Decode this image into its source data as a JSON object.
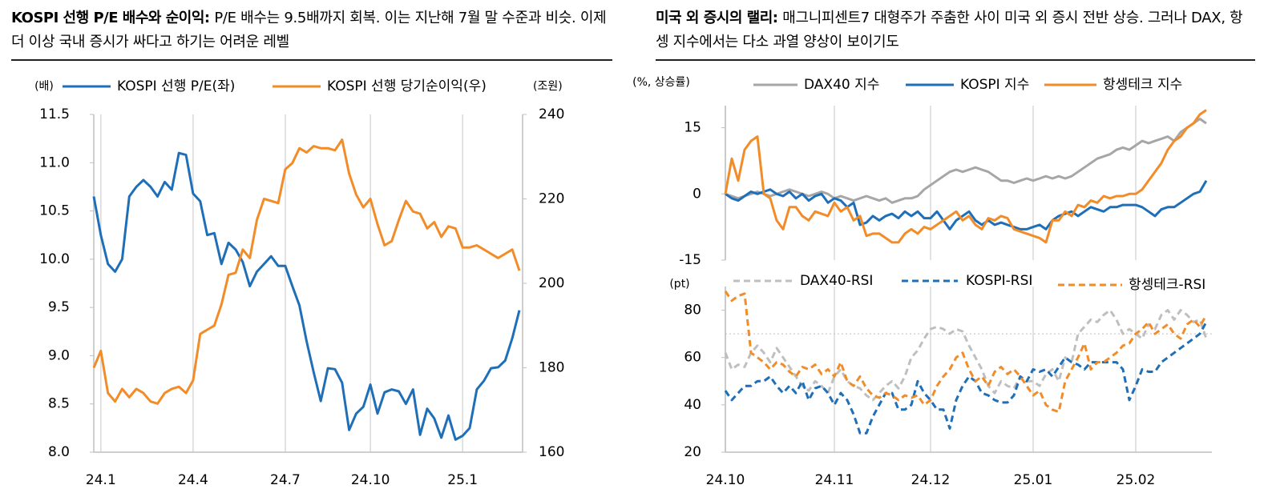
{
  "chart_data": [
    {
      "type": "line",
      "title": "KOSPI 선행 P/E 배수와 순이익:",
      "subtitle": "P/E 배수는 9.5배까지 회복. 이는 지난해 7월 말 수준과 비슷. 이제 더 이상 국내 증시가 싸다고 하기는 어려운 레벨",
      "ylabel": "(배)",
      "y2label": "(조원)",
      "categories": [
        null,
        "24.1",
        null,
        null,
        null,
        null,
        null,
        null,
        null,
        null,
        null,
        null,
        null,
        null,
        "24.4",
        null,
        null,
        null,
        null,
        null,
        null,
        null,
        null,
        null,
        null,
        null,
        null,
        "24.7",
        null,
        null,
        null,
        null,
        null,
        null,
        null,
        null,
        null,
        null,
        null,
        "24.10",
        null,
        null,
        null,
        null,
        null,
        null,
        null,
        null,
        null,
        null,
        null,
        null,
        "25.1",
        null,
        null,
        null,
        null,
        null,
        null,
        null,
        null
      ],
      "ylim": [
        8,
        11.5
      ],
      "yticks": [
        {
          "value": 8,
          "label": "8.0"
        },
        8.5,
        {
          "value": 9,
          "label": "9.0"
        },
        9.5,
        {
          "value": 10,
          "label": "10.0"
        },
        10.5,
        {
          "value": 11,
          "label": "11.0"
        },
        11.5
      ],
      "y2lim": [
        160,
        240
      ],
      "y2ticks": [
        160,
        180,
        200,
        220,
        240
      ],
      "series": [
        {
          "name": "KOSPI 선행 P/E(좌)",
          "color": "#1f6fb8",
          "values": [
            10.65,
            10.25,
            9.95,
            9.87,
            10.0,
            10.65,
            10.75,
            10.82,
            10.75,
            10.65,
            10.8,
            10.72,
            11.1,
            11.08,
            10.68,
            10.6,
            10.25,
            10.27,
            9.95,
            10.17,
            10.1,
            9.97,
            9.72,
            9.87,
            9.95,
            10.03,
            9.93,
            9.93,
            9.72,
            9.52,
            9.15,
            8.83,
            8.53,
            8.87,
            8.86,
            8.72,
            8.23,
            8.4,
            8.47,
            8.7,
            8.4,
            8.62,
            8.65,
            8.63,
            8.5,
            8.65,
            8.18,
            8.45,
            8.35,
            8.15,
            8.38,
            8.13,
            8.17,
            8.25,
            8.65,
            8.74,
            8.87,
            8.88,
            8.95,
            9.18,
            9.47
          ]
        },
        {
          "name": "KOSPI 선행 당기순이익(우)",
          "color": "#f28c28",
          "axis": "y2",
          "values": [
            180,
            184,
            174,
            172,
            175,
            173,
            175,
            174,
            172,
            171.5,
            174,
            175,
            175.5,
            174,
            177,
            188,
            189,
            190,
            195,
            202,
            202.5,
            208,
            206,
            215,
            220,
            219.5,
            219,
            227,
            228.5,
            232,
            231,
            232.5,
            232,
            232,
            231.5,
            234,
            226,
            221,
            218,
            220,
            214,
            209,
            210,
            215,
            219.5,
            217,
            216.5,
            213,
            214.5,
            211,
            213.5,
            213,
            208.5,
            208.5,
            209,
            208,
            207,
            206,
            207,
            208,
            203
          ]
        }
      ]
    },
    {
      "type": "line",
      "title": "미국 외 증시의 랠리:",
      "subtitle": "매그니피센트7 대형주가 주춤한 사이 미국 외 증시 전반 상승. 그러나 DAX, 항셍 지수에서는 다소 과열 양상이 보이기도",
      "ylabel": "(%, 상승률)",
      "ylim": [
        -15,
        20
      ],
      "yticks": [
        -15,
        0,
        15
      ],
      "series": [
        {
          "name": "DAX40 지수",
          "color": "#a6a6a6",
          "values": [
            0,
            -0.5,
            -1,
            -0.5,
            0,
            0.5,
            0,
            -0.5,
            0,
            0.5,
            1,
            0.5,
            0,
            -0.5,
            0,
            0.5,
            0,
            -1,
            -0.5,
            -1,
            -1.5,
            -1,
            -0.5,
            -1,
            -1.5,
            -1,
            -2,
            -1.5,
            -1,
            -1,
            -0.5,
            1,
            2,
            3,
            4,
            5,
            5.5,
            5,
            5.5,
            6,
            5.5,
            5,
            4,
            3,
            3,
            2.5,
            3,
            3.5,
            3,
            3.5,
            4,
            3.5,
            4,
            3.5,
            4,
            5,
            6,
            7,
            8,
            8.5,
            9,
            10,
            10.5,
            10,
            11,
            12,
            11.5,
            12,
            12.5,
            13,
            12,
            14,
            15,
            16,
            17,
            16
          ]
        },
        {
          "name": "KOSPI 지수",
          "color": "#1f6fb8",
          "values": [
            0,
            -1,
            -1.5,
            -0.5,
            0.5,
            0,
            0.5,
            1,
            0,
            -0.5,
            0.5,
            -1,
            0,
            -1.5,
            -0.5,
            0,
            -2,
            -1,
            -1.5,
            -3,
            -2,
            -7,
            -6.5,
            -5,
            -6,
            -5,
            -4.5,
            -5.5,
            -4,
            -5,
            -4,
            -5.5,
            -5.5,
            -4,
            -6,
            -8,
            -6,
            -5,
            -4,
            -6,
            -7,
            -6,
            -7,
            -6.5,
            -7,
            -7.5,
            -8,
            -8,
            -7.5,
            -7,
            -8,
            -6,
            -5,
            -4.5,
            -4,
            -5,
            -4,
            -3,
            -3.5,
            -4,
            -3,
            -3,
            -2.5,
            -2.5,
            -2.5,
            -3,
            -4,
            -5,
            -3.5,
            -3,
            -3,
            -2,
            -1,
            0,
            0.5,
            3
          ]
        },
        {
          "name": "항셍테크 지수",
          "color": "#f28c28",
          "values": [
            0,
            8,
            3,
            10,
            12,
            13,
            0,
            -1,
            -6,
            -8,
            -3,
            -3,
            -5,
            -6,
            -4,
            -4.5,
            -5,
            -2,
            -4,
            -3,
            -6,
            -5,
            -9.5,
            -9,
            -9,
            -10,
            -11,
            -11,
            -9,
            -8,
            -9,
            -7.5,
            -8,
            -7,
            -6,
            -5,
            -4,
            -6,
            -5,
            -7,
            -8,
            -5.5,
            -6,
            -5,
            -5.5,
            -8,
            -8.5,
            -9,
            -9.5,
            -10,
            -11,
            -6,
            -6,
            -4,
            -5,
            -2.5,
            -3,
            -1.5,
            -2,
            -0.5,
            -1,
            -0.5,
            -0.5,
            0,
            0,
            1,
            3,
            5,
            7,
            10,
            12,
            13,
            15,
            16,
            18,
            19
          ]
        }
      ]
    },
    {
      "type": "line",
      "ylabel": "(pt)",
      "categories": [
        "24.10",
        null,
        null,
        null,
        null,
        null,
        null,
        null,
        null,
        null,
        null,
        null,
        null,
        null,
        null,
        null,
        null,
        "24.11",
        null,
        null,
        null,
        null,
        null,
        null,
        null,
        null,
        null,
        null,
        null,
        null,
        null,
        null,
        "24.12",
        null,
        null,
        null,
        null,
        null,
        null,
        null,
        null,
        null,
        null,
        null,
        null,
        null,
        null,
        null,
        "25.01",
        null,
        null,
        null,
        null,
        null,
        null,
        null,
        null,
        null,
        null,
        null,
        null,
        null,
        null,
        null,
        "25.02",
        null,
        null,
        null,
        null,
        null,
        null,
        null,
        null,
        null,
        null,
        null
      ],
      "ylim": [
        20,
        90
      ],
      "yticks": [
        20,
        40,
        60,
        80
      ],
      "reference_line": 70,
      "series": [
        {
          "name": "DAX40-RSI",
          "color": "#bfbfbf",
          "dashed": true,
          "values": [
            62,
            55,
            57,
            56,
            62,
            65,
            62,
            58,
            64,
            60,
            56,
            52,
            48,
            46,
            50,
            48,
            45,
            52,
            55,
            50,
            48,
            47,
            44,
            42,
            45,
            48,
            50,
            47,
            52,
            60,
            63,
            68,
            72,
            73,
            72,
            70,
            72,
            71,
            65,
            60,
            55,
            48,
            45,
            50,
            48,
            47,
            52,
            50,
            50,
            48,
            53,
            55,
            50,
            60,
            58,
            70,
            73,
            76,
            75,
            78,
            80,
            76,
            70,
            72,
            70,
            68,
            74,
            72,
            78,
            80,
            76,
            80,
            78,
            75,
            76,
            68
          ]
        },
        {
          "name": "KOSPI-RSI",
          "color": "#1f6fb8",
          "dashed": true,
          "values": [
            46,
            42,
            45,
            48,
            48,
            50,
            50,
            52,
            48,
            45,
            48,
            45,
            50,
            42,
            47,
            48,
            45,
            40,
            45,
            42,
            36,
            28,
            28,
            35,
            40,
            45,
            45,
            38,
            38,
            40,
            50,
            45,
            42,
            38,
            38,
            30,
            42,
            48,
            52,
            50,
            45,
            44,
            42,
            41,
            41,
            44,
            52,
            50,
            55,
            54,
            55,
            52,
            56,
            60,
            58,
            57,
            55,
            58,
            58,
            58,
            58,
            58,
            55,
            42,
            48,
            55,
            54,
            54,
            58,
            60,
            62,
            64,
            66,
            68,
            70,
            75
          ]
        },
        {
          "name": "항셍테크-RSI",
          "color": "#f28c28",
          "dashed": true,
          "values": [
            88,
            84,
            86,
            87,
            62,
            60,
            58,
            55,
            58,
            57,
            54,
            52,
            56,
            55,
            57,
            53,
            55,
            52,
            58,
            50,
            48,
            52,
            47,
            44,
            43,
            45,
            44,
            42,
            44,
            43,
            44,
            40,
            42,
            48,
            52,
            55,
            60,
            62,
            55,
            50,
            52,
            48,
            54,
            56,
            53,
            55,
            52,
            48,
            44,
            46,
            40,
            38,
            37,
            50,
            55,
            60,
            66,
            55,
            58,
            58,
            60,
            62,
            65,
            66,
            70,
            72,
            75,
            70,
            72,
            74,
            70,
            68,
            74,
            76,
            73,
            78
          ]
        }
      ]
    }
  ]
}
